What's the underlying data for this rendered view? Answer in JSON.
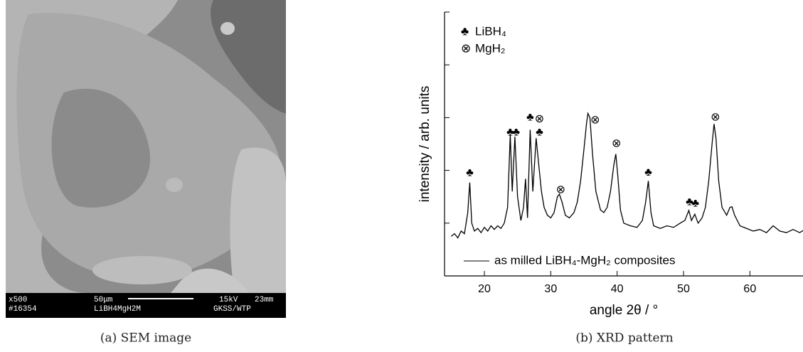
{
  "chart_data": {
    "type": "line",
    "xlabel": "angle 2θ / °",
    "ylabel": "intensity / arb. units",
    "xlim": [
      14,
      68
    ],
    "xticks": [
      20,
      30,
      40,
      50,
      60
    ],
    "ylim": [
      0,
      5
    ],
    "yticks": [
      0,
      1,
      2,
      3,
      4,
      5
    ],
    "ytick_labels": false,
    "x": [
      15,
      15.5,
      16,
      16.5,
      17,
      17.5,
      17.8,
      18.1,
      18.5,
      19,
      19.5,
      20,
      20.5,
      21,
      21.5,
      22,
      22.5,
      23,
      23.5,
      23.9,
      24.2,
      24.6,
      25,
      25.5,
      25.9,
      26.2,
      26.5,
      26.9,
      27.3,
      27.8,
      28.2,
      28.6,
      29,
      29.5,
      30,
      30.5,
      31,
      31.3,
      31.7,
      32.2,
      32.8,
      33.5,
      34,
      34.5,
      35,
      35.4,
      35.6,
      35.9,
      36.3,
      36.8,
      37.5,
      38,
      38.5,
      39,
      39.5,
      39.8,
      40.1,
      40.5,
      41,
      42,
      43,
      43.8,
      44.3,
      44.7,
      45.1,
      45.5,
      46.5,
      47.5,
      48.5,
      49.5,
      50.2,
      50.8,
      51.2,
      51.7,
      52.2,
      52.8,
      53.3,
      53.8,
      54.3,
      54.6,
      54.9,
      55.3,
      55.8,
      56.5,
      57,
      57.3,
      57.7,
      58.5,
      59.5,
      60.5,
      61.5,
      62.5,
      63.5,
      64.5,
      65.5,
      66.5,
      67.5,
      68
    ],
    "series": [
      {
        "name": "as milled LiBH₄-MgH₂ composites",
        "color": "#000000",
        "values": [
          0.75,
          0.8,
          0.72,
          0.85,
          0.8,
          1.2,
          1.77,
          1.0,
          0.85,
          0.9,
          0.82,
          0.92,
          0.85,
          0.95,
          0.88,
          0.95,
          0.9,
          1.0,
          1.3,
          2.68,
          1.6,
          2.64,
          1.5,
          1.05,
          1.3,
          1.84,
          1.1,
          2.77,
          1.6,
          2.61,
          2.1,
          1.6,
          1.3,
          1.15,
          1.1,
          1.2,
          1.5,
          1.55,
          1.4,
          1.15,
          1.1,
          1.2,
          1.4,
          1.8,
          2.4,
          2.9,
          3.08,
          3.0,
          2.3,
          1.6,
          1.25,
          1.2,
          1.3,
          1.6,
          2.1,
          2.31,
          1.9,
          1.25,
          1.0,
          0.95,
          0.92,
          1.05,
          1.4,
          1.8,
          1.2,
          0.95,
          0.9,
          0.95,
          0.92,
          1.0,
          1.05,
          1.24,
          1.05,
          1.17,
          1.0,
          1.1,
          1.3,
          1.8,
          2.5,
          2.88,
          2.6,
          1.8,
          1.3,
          1.15,
          1.3,
          1.31,
          1.15,
          0.95,
          0.9,
          0.85,
          0.88,
          0.82,
          0.95,
          0.85,
          0.82,
          0.88,
          0.82,
          0.86
        ]
      }
    ],
    "legend": [
      {
        "symbol": "♣",
        "label": "LiBH₄"
      },
      {
        "symbol": "⊗",
        "label": "MgH₂"
      }
    ],
    "annotations": [
      {
        "text": "♣",
        "x": 17.8,
        "y": 1.95
      },
      {
        "text": "♣",
        "x": 23.9,
        "y": 2.72
      },
      {
        "text": "♣",
        "x": 24.8,
        "y": 2.72
      },
      {
        "text": "♣",
        "x": 26.9,
        "y": 3.0
      },
      {
        "text": "⊗",
        "x": 28.3,
        "y": 2.97
      },
      {
        "text": "♣",
        "x": 28.3,
        "y": 2.72
      },
      {
        "text": "⊗",
        "x": 31.5,
        "y": 1.63
      },
      {
        "text": "⊗",
        "x": 36.7,
        "y": 2.95
      },
      {
        "text": "⊗",
        "x": 39.9,
        "y": 2.5
      },
      {
        "text": "♣",
        "x": 44.7,
        "y": 1.96
      },
      {
        "text": "♣",
        "x": 50.9,
        "y": 1.4
      },
      {
        "text": "♣",
        "x": 51.8,
        "y": 1.37
      },
      {
        "text": "⊗",
        "x": 54.8,
        "y": 3.0
      }
    ]
  },
  "sem_image": {
    "magnification": "x500",
    "id": "#16354",
    "scale": "50μm",
    "sample": "LiBH4MgH2M",
    "voltage": "15kV",
    "distance": "23mm",
    "lab": "GKSS/WTP"
  },
  "captions": [
    "(a) SEM image",
    "(b) XRD pattern"
  ]
}
